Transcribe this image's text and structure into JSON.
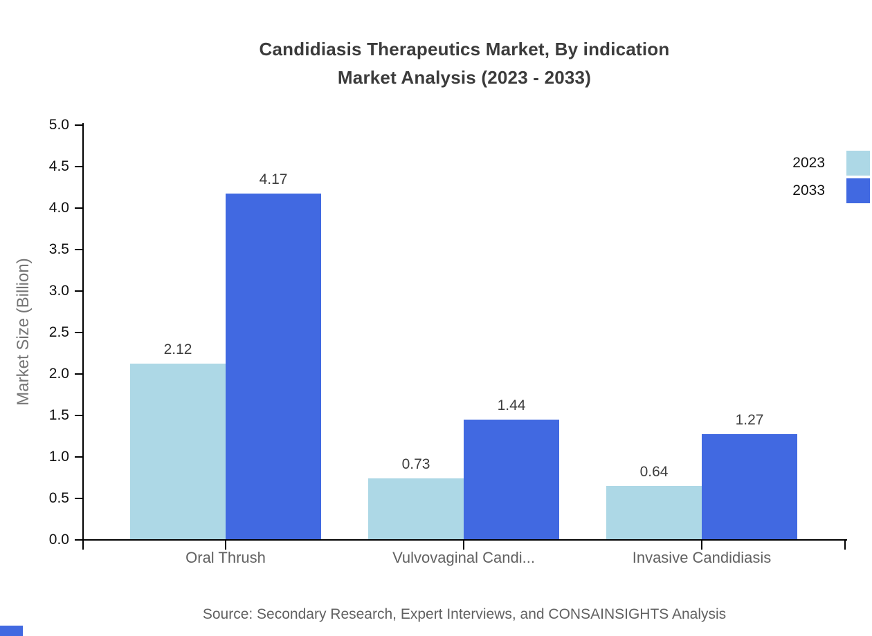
{
  "title": {
    "line1": "Candidiasis Therapeutics Market, By indication",
    "line2": "Market Analysis (2023 - 2033)"
  },
  "source": "Source: Secondary Research, Expert Interviews, and CONSAINSIGHTS Analysis",
  "colors": {
    "series_2023": "#ADD8E6",
    "series_2033": "#4169E1",
    "axis": "#000000",
    "title_text": "#3b3b3b",
    "muted_text": "#616161"
  },
  "chart_data": {
    "type": "bar",
    "title": "Candidiasis Therapeutics Market, By indication Market Analysis (2023 - 2033)",
    "categories": [
      "Oral Thrush",
      "Vulvovaginal Candi...",
      "Invasive Candidiasis"
    ],
    "series": [
      {
        "name": "2023",
        "color": "#ADD8E6",
        "values": [
          2.12,
          0.73,
          0.64
        ]
      },
      {
        "name": "2033",
        "color": "#4169E1",
        "values": [
          4.17,
          1.44,
          1.27
        ]
      }
    ],
    "xlabel": "",
    "ylabel": "Market Size (Billion)",
    "ylim": [
      0,
      5
    ],
    "yticks": [
      "0.0",
      "0.5",
      "1.0",
      "1.5",
      "2.0",
      "2.5",
      "3.0",
      "3.5",
      "4.0",
      "4.5",
      "5.0"
    ],
    "grid": false,
    "value_labels": true,
    "legend_position": "top-right"
  }
}
